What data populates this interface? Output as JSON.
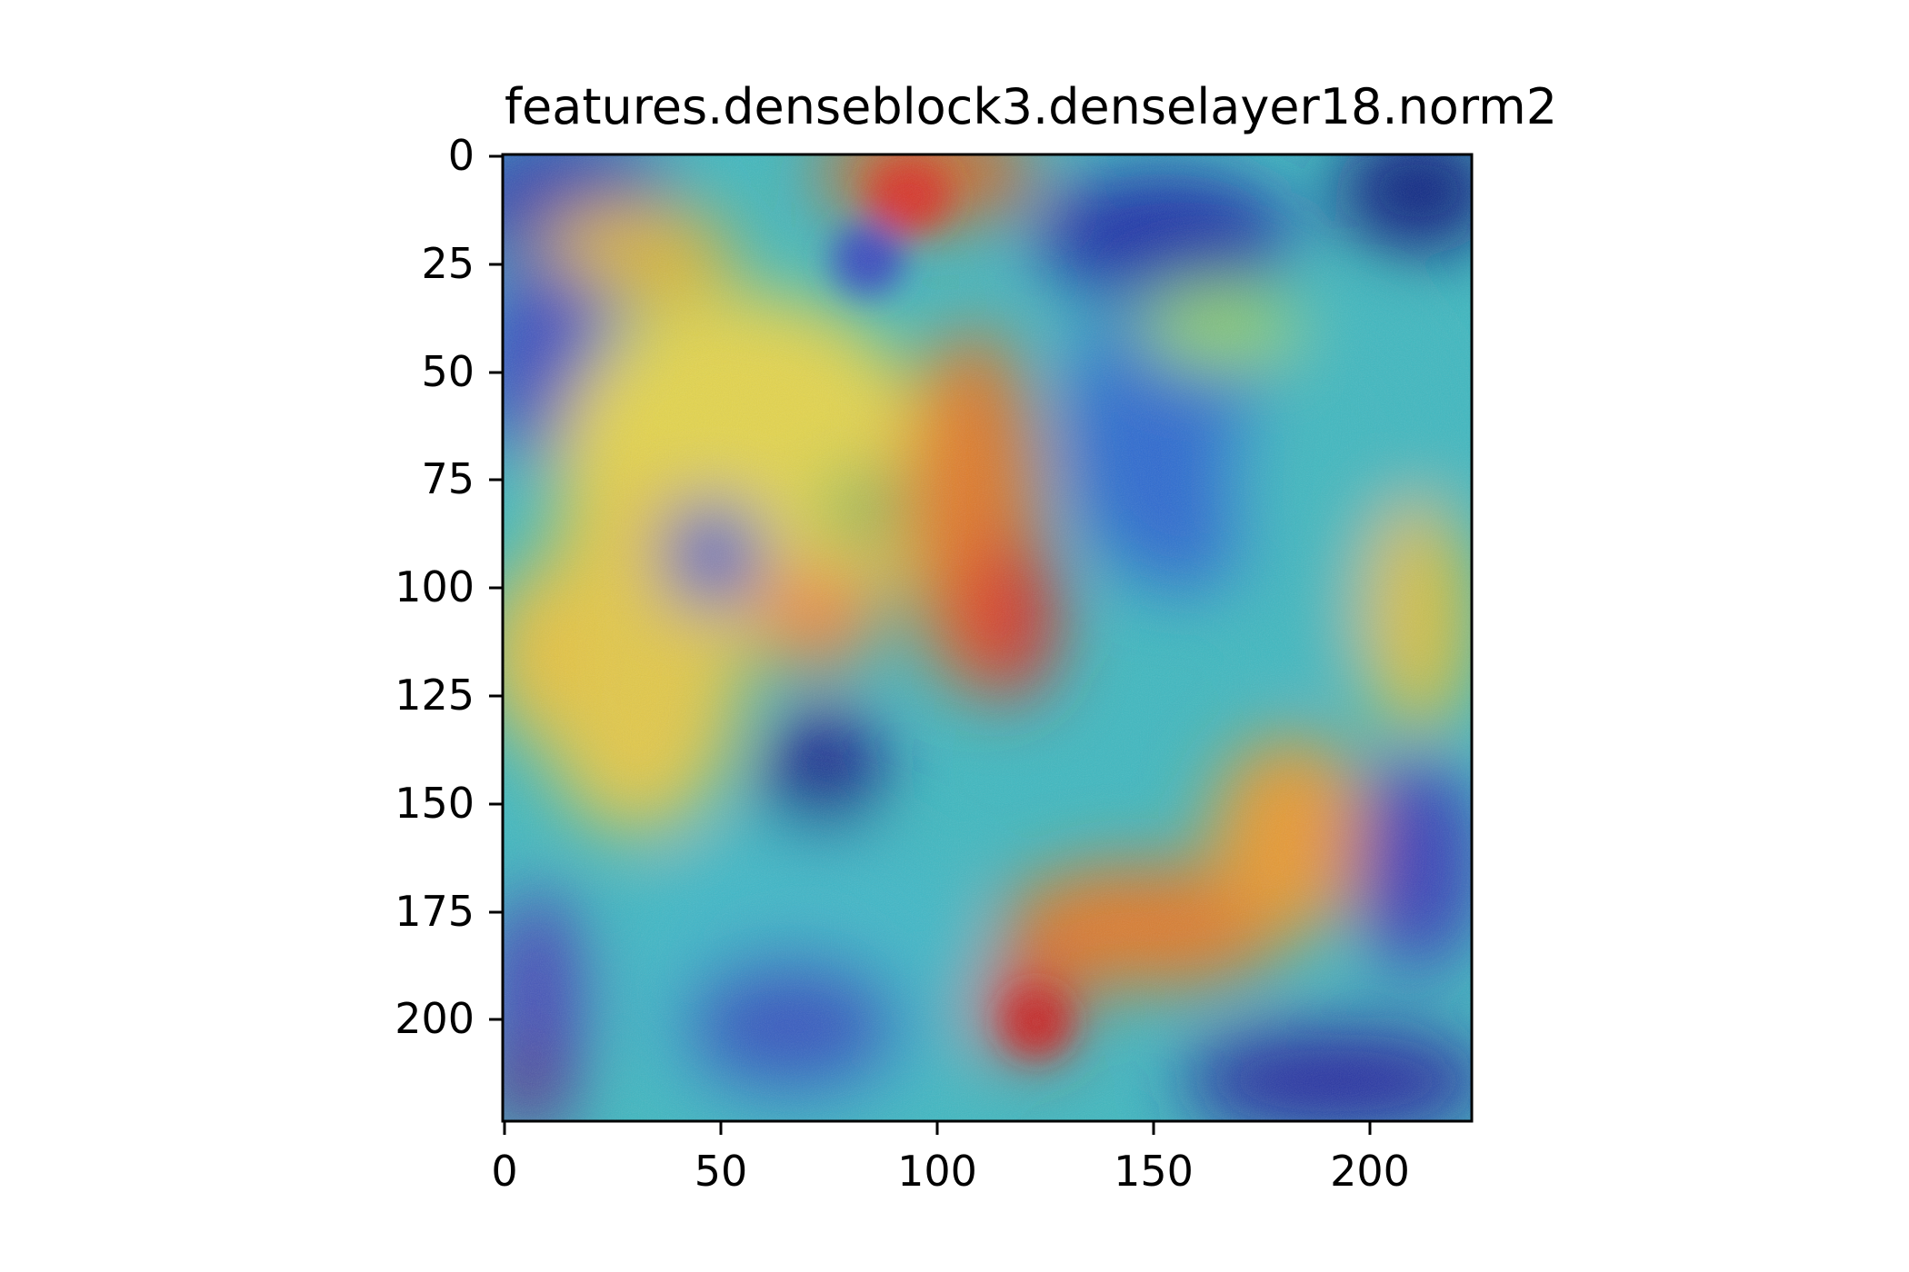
{
  "title": "features.denseblock3.denselayer18.norm2",
  "image": {
    "description_colormap": "jet",
    "width_units": 224,
    "height_units": 224
  },
  "axes": {
    "x_ticks": [
      0,
      50,
      100,
      150,
      200
    ],
    "y_ticks": [
      0,
      25,
      50,
      75,
      100,
      125,
      150,
      175,
      200
    ],
    "x_tick_labels": [
      "0",
      "50",
      "100",
      "150",
      "200"
    ],
    "y_tick_labels": [
      "0",
      "25",
      "50",
      "75",
      "100",
      "125",
      "150",
      "175",
      "200"
    ],
    "xlim": [
      -0.5,
      223.5
    ],
    "ylim": [
      223.5,
      -0.5
    ]
  },
  "colors": {
    "jet_dark_blue": "#1a1a8c",
    "jet_blue": "#2f5fd0",
    "jet_cyan": "#3fc7c7",
    "jet_green": "#8fd06a",
    "jet_yellow": "#e6d24a",
    "jet_orange": "#e88a2c",
    "jet_red": "#d8352a"
  }
}
